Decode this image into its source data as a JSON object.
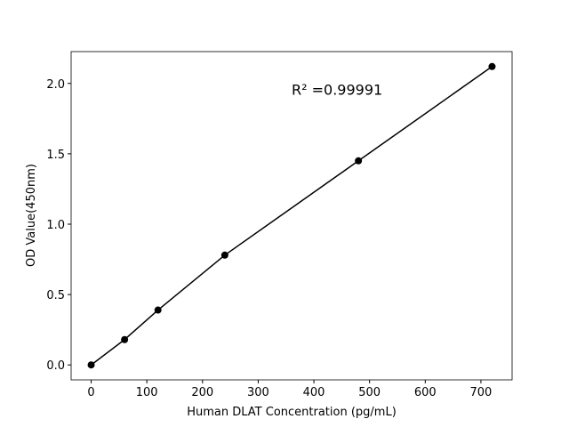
{
  "chart_data": {
    "type": "line",
    "annotation": "R² =0.99991",
    "xlabel": "Human DLAT Concentration (pg/mL)",
    "ylabel": "OD Value(450nm)",
    "x": [
      0,
      60,
      120,
      240,
      480,
      720
    ],
    "series": [
      {
        "color": "#000000",
        "values": [
          0.0,
          0.18,
          0.39,
          0.78,
          1.45,
          2.12
        ]
      }
    ],
    "markers": true,
    "xlim": [
      -36,
      756
    ],
    "ylim": [
      -0.106,
      2.226
    ],
    "xticks": [
      0,
      100,
      200,
      300,
      400,
      500,
      600,
      700
    ],
    "yticks": [
      {
        "value": 0,
        "label": "0.0"
      },
      0.5,
      {
        "value": 1,
        "label": "1.0"
      },
      1.5,
      {
        "value": 2,
        "label": "2.0"
      }
    ],
    "grid": false
  }
}
